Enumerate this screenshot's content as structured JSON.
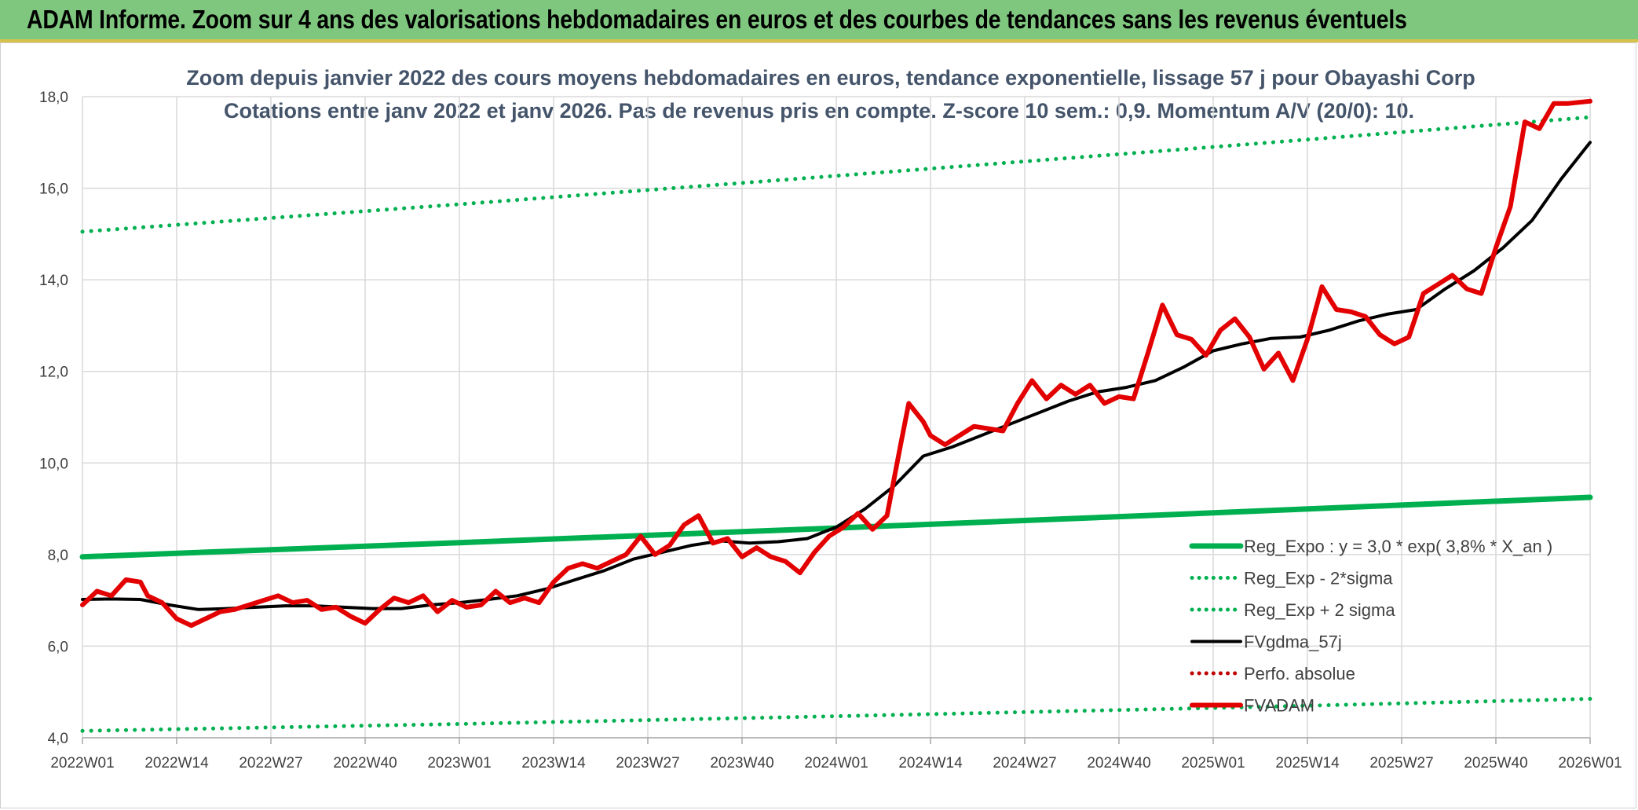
{
  "banner": {
    "title": "ADAM Informe. Zoom sur 4 ans des valorisations hebdomadaires en euros et des courbes de tendances sans les revenus éventuels"
  },
  "colors": {
    "banner_bg": "#7fc77f",
    "reg_expo": "#00b050",
    "fvgdma": "#000000",
    "perfo": "#c00000",
    "fvadam": "#e30000",
    "title": "#44546a",
    "grid": "#d9d9d9"
  },
  "chart_data": {
    "type": "line",
    "title": "Zoom depuis janvier 2022 des cours moyens hebdomadaires en euros, tendance exponentielle, lissage 57 j pour Obayashi Corp",
    "subtitle": "Cotations entre janv 2022 et janv 2026. Pas de revenus pris en compte. Z-score 10 sem.: 0,9. Momentum A/V (20/0): 10.",
    "xlabel": "",
    "ylabel": "",
    "ylim": [
      4.0,
      18.0
    ],
    "yticks": [
      "4,0",
      "6,0",
      "8,0",
      "10,0",
      "12,0",
      "14,0",
      "16,0",
      "18,0"
    ],
    "ytick_values": [
      4,
      6,
      8,
      10,
      12,
      14,
      16,
      18
    ],
    "xticks": [
      "2022W01",
      "2022W14",
      "2022W27",
      "2022W40",
      "2023W01",
      "2023W14",
      "2023W27",
      "2023W40",
      "2024W01",
      "2024W14",
      "2024W27",
      "2024W40",
      "2025W01",
      "2025W14",
      "2025W27",
      "2025W40",
      "2026W01"
    ],
    "weeks_total": 208,
    "grid": true,
    "legend_position": "bottom-right",
    "series": [
      {
        "name": "Reg_Expo : y = 3,0 * exp( 3,8% *  X_an )",
        "style": "solid-thick",
        "color": "#00b050",
        "x": [
          0,
          52,
          104,
          156,
          208
        ],
        "values": [
          7.95,
          8.26,
          8.58,
          8.91,
          9.25
        ]
      },
      {
        "name": "Reg_Exp - 2*sigma",
        "style": "dotted",
        "color": "#00b050",
        "x": [
          0,
          52,
          104,
          156,
          208
        ],
        "values": [
          4.15,
          4.3,
          4.47,
          4.65,
          4.85
        ]
      },
      {
        "name": "Reg_Exp + 2 sigma",
        "style": "dotted",
        "color": "#00b050",
        "x": [
          0,
          52,
          104,
          156,
          208
        ],
        "values": [
          15.05,
          15.65,
          16.27,
          16.9,
          17.55
        ]
      },
      {
        "name": "FVgdma_57j",
        "style": "solid",
        "color": "#000000",
        "x": [
          0,
          4,
          8,
          12,
          16,
          20,
          24,
          28,
          32,
          36,
          40,
          44,
          48,
          52,
          56,
          60,
          64,
          68,
          72,
          76,
          80,
          84,
          88,
          92,
          96,
          100,
          104,
          108,
          112,
          116,
          120,
          124,
          128,
          132,
          136,
          140,
          144,
          148,
          152,
          156,
          160,
          164,
          168,
          172,
          176,
          180,
          184,
          188,
          192,
          196,
          200,
          204,
          208
        ],
        "values": [
          7.02,
          7.03,
          7.02,
          6.9,
          6.8,
          6.82,
          6.85,
          6.88,
          6.88,
          6.85,
          6.82,
          6.82,
          6.9,
          6.95,
          7.02,
          7.1,
          7.25,
          7.45,
          7.65,
          7.9,
          8.05,
          8.2,
          8.3,
          8.25,
          8.28,
          8.35,
          8.6,
          9.0,
          9.5,
          10.15,
          10.35,
          10.6,
          10.85,
          11.1,
          11.35,
          11.55,
          11.65,
          11.8,
          12.1,
          12.45,
          12.6,
          12.72,
          12.75,
          12.9,
          13.1,
          13.25,
          13.35,
          13.8,
          14.2,
          14.7,
          15.3,
          16.2,
          17.0
        ]
      },
      {
        "name": "Perfo. absolue",
        "style": "dotted",
        "color": "#c00000",
        "x": [],
        "values": []
      },
      {
        "name": "FVADAM",
        "style": "solid-thick",
        "color": "#e30000",
        "x": [
          0,
          2,
          4,
          6,
          8,
          9,
          11,
          13,
          15,
          17,
          19,
          21,
          23,
          25,
          27,
          29,
          31,
          33,
          35,
          37,
          39,
          41,
          43,
          45,
          47,
          49,
          51,
          53,
          55,
          57,
          59,
          61,
          63,
          65,
          67,
          69,
          71,
          73,
          75,
          77,
          79,
          81,
          83,
          85,
          87,
          89,
          91,
          93,
          95,
          97,
          99,
          101,
          103,
          105,
          107,
          109,
          111,
          113,
          114,
          116,
          117,
          119,
          121,
          123,
          125,
          127,
          129,
          131,
          133,
          135,
          137,
          139,
          141,
          143,
          145,
          147,
          149,
          151,
          153,
          155,
          157,
          159,
          161,
          163,
          165,
          167,
          169,
          171,
          173,
          175,
          177,
          179,
          181,
          183,
          185,
          187,
          189,
          191,
          193,
          195,
          197,
          199,
          201,
          203,
          205,
          208
        ],
        "values": [
          6.9,
          7.2,
          7.1,
          7.45,
          7.4,
          7.1,
          6.95,
          6.6,
          6.45,
          6.6,
          6.75,
          6.8,
          6.9,
          7.0,
          7.1,
          6.95,
          7.0,
          6.8,
          6.85,
          6.65,
          6.5,
          6.8,
          7.05,
          6.95,
          7.1,
          6.75,
          7.0,
          6.85,
          6.9,
          7.2,
          6.95,
          7.05,
          6.95,
          7.4,
          7.7,
          7.8,
          7.7,
          7.85,
          8.0,
          8.4,
          8.0,
          8.2,
          8.65,
          8.85,
          8.25,
          8.35,
          7.95,
          8.15,
          7.95,
          7.85,
          7.6,
          8.05,
          8.4,
          8.6,
          8.9,
          8.55,
          8.85,
          10.5,
          11.3,
          10.9,
          10.6,
          10.4,
          10.6,
          10.8,
          10.75,
          10.7,
          11.3,
          11.8,
          11.4,
          11.7,
          11.5,
          11.7,
          11.3,
          11.45,
          11.4,
          12.4,
          13.45,
          12.8,
          12.7,
          12.35,
          12.9,
          13.15,
          12.75,
          12.05,
          12.4,
          11.8,
          12.7,
          13.85,
          13.35,
          13.3,
          13.2,
          12.8,
          12.6,
          12.75,
          13.7,
          13.9,
          14.1,
          13.8,
          13.7,
          14.7,
          15.6,
          17.45,
          17.3,
          17.85,
          17.85,
          17.9
        ]
      }
    ]
  }
}
